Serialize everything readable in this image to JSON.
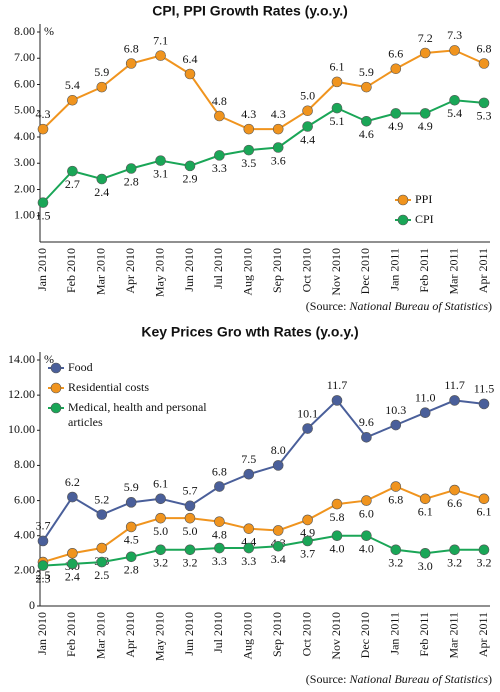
{
  "chart_data": [
    {
      "type": "line",
      "title": "CPI, PPI Growth Rates (y.o.y.)",
      "y_unit": "%",
      "categories": [
        "Jan 2010",
        "Feb 2010",
        "Mar 2010",
        "Apr 2010",
        "May 2010",
        "Jun 2010",
        "Jul 2010",
        "Aug 2010",
        "Sep 2010",
        "Oct 2010",
        "Nov 2010",
        "Dec 2010",
        "Jan 2011",
        "Feb 2011",
        "Mar 2011",
        "Apr 2011"
      ],
      "series": [
        {
          "name": "PPI",
          "color": "#f0941e",
          "values": [
            4.3,
            5.4,
            5.9,
            6.8,
            7.1,
            6.4,
            4.8,
            4.3,
            4.3,
            5.0,
            6.1,
            5.9,
            6.6,
            7.2,
            7.3,
            6.8
          ],
          "value_labels": [
            "4.3",
            "5.4",
            "5.9",
            "6.8",
            "7.1",
            "6.4",
            "4.8",
            "4.3",
            "4.3",
            "5.0",
            "6.1",
            "5.9",
            "6.6",
            "7.2",
            "7.3",
            "6.8"
          ]
        },
        {
          "name": "CPI",
          "color": "#1aa657",
          "values": [
            1.5,
            2.7,
            2.4,
            2.8,
            3.1,
            2.9,
            3.3,
            3.5,
            3.6,
            4.4,
            5.1,
            4.6,
            4.9,
            4.9,
            5.4,
            5.3
          ],
          "value_labels": [
            "1.5",
            "2.7",
            "2.4",
            "2.8",
            "3.1",
            "2.9",
            "3.3",
            "3.5",
            "3.6",
            "4.4",
            "5.1",
            "4.6",
            "4.9",
            "4.9",
            "5.4",
            "5.3"
          ]
        }
      ],
      "ylim": [
        0,
        8
      ],
      "yticks": [
        {
          "value": 1,
          "label": "1.00"
        },
        {
          "value": 2,
          "label": "2.00"
        },
        {
          "value": 3,
          "label": "3.00"
        },
        {
          "value": 4,
          "label": "4.00"
        },
        {
          "value": 5,
          "label": "5.00"
        },
        {
          "value": 6,
          "label": "6.00"
        },
        {
          "value": 7,
          "label": "7.00"
        },
        {
          "value": 8,
          "label": "8.00"
        }
      ],
      "legend": "lower right",
      "source": [
        "(Source: ",
        "National Bureau of Statistics",
        ")"
      ]
    },
    {
      "type": "line",
      "title": "Key Prices Gro wth Rates (y.o.y.)",
      "y_unit": "%",
      "categories": [
        "Jan 2010",
        "Feb 2010",
        "Mar 2010",
        "Apr 2010",
        "May 2010",
        "Jun 2010",
        "Jul 2010",
        "Aug 2010",
        "Sep 2010",
        "Oct 2010",
        "Nov 2010",
        "Dec 2010",
        "Jan 2011",
        "Feb 2011",
        "Mar 2011",
        "Apr 2011"
      ],
      "series": [
        {
          "name": "Food",
          "color": "#4a5f9a",
          "values": [
            3.7,
            6.2,
            5.2,
            5.9,
            6.1,
            5.7,
            6.8,
            7.5,
            8.0,
            10.1,
            11.7,
            9.6,
            10.3,
            11.0,
            11.7,
            11.5
          ],
          "value_labels": [
            "3.7",
            "6.2",
            "5.2",
            "5.9",
            "6.1",
            "5.7",
            "6.8",
            "7.5",
            "8.0",
            "10.1",
            "11.7",
            "9.6",
            "10.3",
            "11.0",
            "11.7",
            "11.5"
          ]
        },
        {
          "name": "Residential costs",
          "color": "#f0941e",
          "values": [
            2.5,
            3.0,
            3.3,
            4.5,
            5.0,
            5.0,
            4.8,
            4.4,
            4.3,
            4.9,
            5.8,
            6.0,
            6.8,
            6.1,
            6.6,
            6.1
          ],
          "value_labels": [
            "2.5",
            "3.0",
            "3.3",
            "4.5",
            "5.0",
            "5.0",
            "4.8",
            "4.4",
            "4.3",
            "4.9",
            "5.8",
            "6.0",
            "6.8",
            "6.1",
            "6.6",
            "6.1"
          ]
        },
        {
          "name": "Medical, health and personal articles",
          "color": "#1aa657",
          "values": [
            2.3,
            2.4,
            2.5,
            2.8,
            3.2,
            3.2,
            3.3,
            3.3,
            3.4,
            3.7,
            4.0,
            4.0,
            3.2,
            3.0,
            3.2,
            3.2
          ],
          "value_labels": [
            "2.3",
            "2.4",
            "2.5",
            "2.8",
            "3.2",
            "3.2",
            "3.3",
            "3.3",
            "3.4",
            "3.7",
            "4.0",
            "4.0",
            "3.2",
            "3.0",
            "3.2",
            "3.2"
          ]
        }
      ],
      "ylim": [
        0,
        14
      ],
      "yticks": [
        0,
        {
          "value": 2,
          "label": "2.00"
        },
        {
          "value": 4,
          "label": "4.00"
        },
        {
          "value": 6,
          "label": "6.00"
        },
        {
          "value": 8,
          "label": "8.00"
        },
        {
          "value": 10,
          "label": "10.00"
        },
        {
          "value": 12,
          "label": "12.00"
        },
        {
          "value": 14,
          "label": "14.00"
        }
      ],
      "legend": "upper left",
      "source": [
        "(Source: ",
        "National Bureau of Statistics",
        ")"
      ]
    }
  ]
}
